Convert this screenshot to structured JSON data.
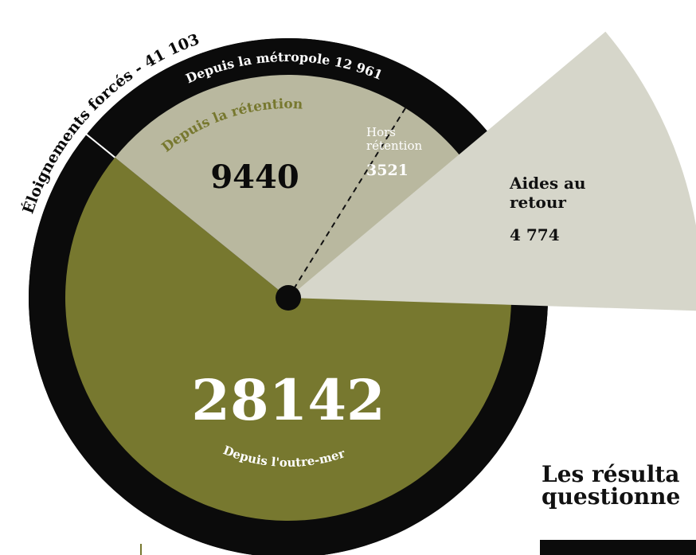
{
  "chart_data": {
    "type": "pie",
    "title": "Éloignements forcés - 41 103",
    "total": 41103,
    "group_label": "Depuis la métropole 12 961",
    "group_value": 12961,
    "categories": [
      "Depuis la rétention",
      "Hors rétention",
      "Depuis l'outre-mer",
      "Aides au retour"
    ],
    "values": [
      9440,
      3521,
      28142,
      4774
    ],
    "value_labels": [
      "9440",
      "3521",
      "28142",
      "4 774"
    ],
    "colors": [
      "#b9b89f",
      "#b9b89f",
      "#77782f",
      "#d6d6ca"
    ],
    "ring_color": "#0b0b0b"
  },
  "heading": [
    "Les résulta",
    "questionne"
  ]
}
